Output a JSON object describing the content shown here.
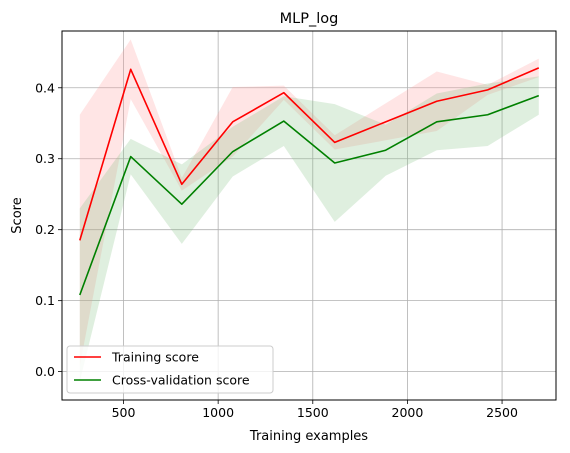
{
  "chart_data": {
    "type": "line",
    "title": "MLP_log",
    "xlabel": "Training examples",
    "ylabel": "Score",
    "xlim": [
      175,
      2785
    ],
    "ylim": [
      -0.04,
      0.48
    ],
    "xticks": [
      {
        "value": 500,
        "label": "500"
      },
      {
        "value": 1000,
        "label": "1000"
      },
      {
        "value": 1500,
        "label": "1500"
      },
      {
        "value": 2000,
        "label": "2000"
      },
      {
        "value": 2500,
        "label": "2500"
      }
    ],
    "yticks": [
      {
        "value": 0.0,
        "label": "0.0"
      },
      {
        "value": 0.1,
        "label": "0.1"
      },
      {
        "value": 0.2,
        "label": "0.2"
      },
      {
        "value": 0.3,
        "label": "0.3"
      },
      {
        "value": 0.4,
        "label": "0.4"
      }
    ],
    "grid": true,
    "legend_position": "lower-left",
    "x": [
      269,
      538,
      808,
      1077,
      1347,
      1616,
      1885,
      2155,
      2424,
      2694
    ],
    "series": [
      {
        "name": "Training score",
        "color": "#ff0000",
        "band_color": "#ff9999",
        "values": [
          0.185,
          0.426,
          0.264,
          0.352,
          0.393,
          0.323,
          0.352,
          0.381,
          0.397,
          0.428
        ],
        "upper": [
          0.362,
          0.468,
          0.273,
          0.401,
          0.403,
          0.333,
          0.378,
          0.423,
          0.404,
          0.441
        ],
        "lower": [
          0.008,
          0.384,
          0.255,
          0.303,
          0.383,
          0.313,
          0.326,
          0.339,
          0.39,
          0.415
        ]
      },
      {
        "name": "Cross-validation score",
        "color": "#008000",
        "band_color": "#7fbf7f",
        "values": [
          0.108,
          0.303,
          0.236,
          0.31,
          0.353,
          0.294,
          0.312,
          0.352,
          0.362,
          0.389
        ],
        "upper": [
          0.23,
          0.328,
          0.292,
          0.345,
          0.388,
          0.377,
          0.348,
          0.392,
          0.406,
          0.416
        ],
        "lower": [
          -0.014,
          0.278,
          0.18,
          0.275,
          0.318,
          0.211,
          0.276,
          0.312,
          0.318,
          0.362
        ]
      }
    ]
  }
}
